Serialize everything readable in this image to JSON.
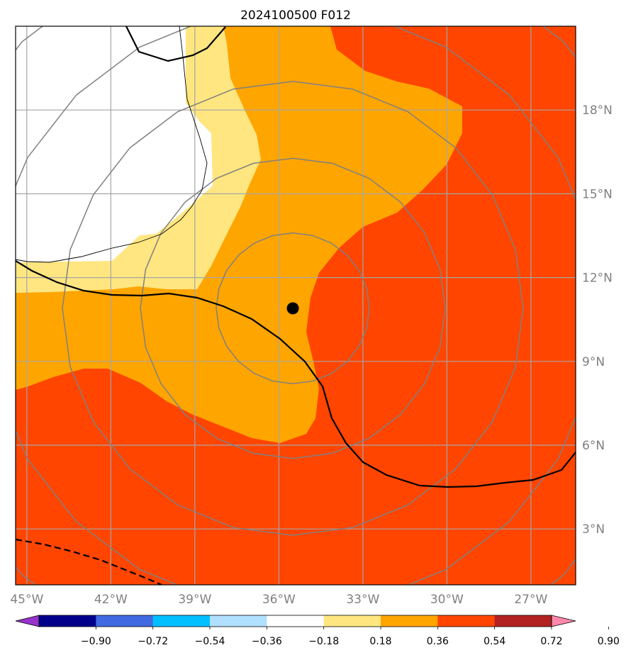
{
  "title": "2024100500 F012",
  "colors": {
    "field_high": "#ff4500",
    "field_mid": "#ffa500",
    "field_low": "#ffe680",
    "field_zero": "#ffffff",
    "grid": "#a6a6a6",
    "range_ring": "#808080",
    "contour": "#000000",
    "center_marker": "#000000"
  },
  "map": {
    "lon_ticks": [
      "45°W",
      "42°W",
      "39°W",
      "36°W",
      "33°W",
      "30°W",
      "27°W"
    ],
    "lat_ticks": [
      "18°N",
      "15°N",
      "12°N",
      "9°N",
      "6°N",
      "3°N"
    ],
    "lon_range": [
      -45.4,
      -25.4
    ],
    "lat_range": [
      1.0,
      21.0
    ],
    "center": {
      "lon": -35.5,
      "lat": 10.9
    }
  },
  "colorbar": {
    "ticks": [
      "−0.90",
      "−0.72",
      "−0.54",
      "−0.36",
      "−0.18",
      "0.18",
      "0.36",
      "0.54",
      "0.72",
      "0.90"
    ],
    "colors": [
      "#9932cc",
      "#00008b",
      "#4169e1",
      "#00bfff",
      "#b0e0ff",
      "#ffffff",
      "#ffe680",
      "#ffa500",
      "#ff4500",
      "#b22222",
      "#ff88aa"
    ],
    "extend": "both"
  }
}
